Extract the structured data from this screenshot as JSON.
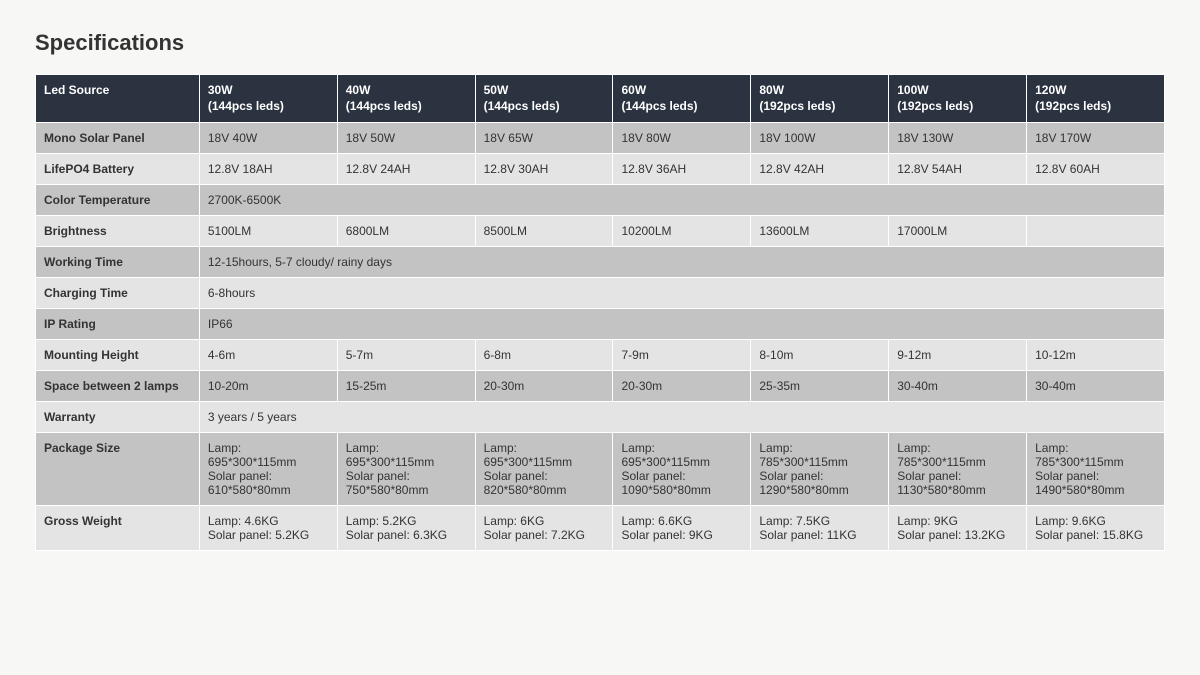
{
  "title": "Specifications",
  "colors": {
    "header_bg": "#2b3240",
    "header_fg": "#ffffff",
    "row_dark": "#c2c3c2",
    "row_light": "#e3e4e3",
    "text": "#333333",
    "border": "#ffffff",
    "page_bg": "#f7f7f5"
  },
  "table": {
    "header_label": "Led Source",
    "columns": [
      {
        "watt": "30W",
        "leds": "(144pcs leds)"
      },
      {
        "watt": "40W",
        "leds": "(144pcs leds)"
      },
      {
        "watt": "50W",
        "leds": "(144pcs leds)"
      },
      {
        "watt": "60W",
        "leds": "(144pcs leds)"
      },
      {
        "watt": "80W",
        "leds": "(192pcs leds)"
      },
      {
        "watt": "100W",
        "leds": "(192pcs leds)"
      },
      {
        "watt": "120W",
        "leds": "(192pcs leds)"
      }
    ],
    "rows": [
      {
        "label": "Mono Solar Panel",
        "shade": "dark",
        "cells": [
          "18V 40W",
          "18V 50W",
          "18V 65W",
          "18V 80W",
          "18V 100W",
          "18V 130W",
          "18V 170W"
        ]
      },
      {
        "label": "LifePO4 Battery",
        "shade": "light",
        "cells": [
          "12.8V 18AH",
          "12.8V 24AH",
          "12.8V 30AH",
          "12.8V 36AH",
          "12.8V 42AH",
          "12.8V 54AH",
          "12.8V 60AH"
        ]
      },
      {
        "label": "Color Temperature",
        "shade": "dark",
        "merged": "2700K-6500K"
      },
      {
        "label": "Brightness",
        "shade": "light",
        "cells": [
          "5100LM",
          "6800LM",
          "8500LM",
          "10200LM",
          "13600LM",
          "17000LM",
          ""
        ]
      },
      {
        "label": "Working Time",
        "shade": "dark",
        "merged": "12-15hours, 5-7 cloudy/ rainy days"
      },
      {
        "label": "Charging Time",
        "shade": "light",
        "merged": "6-8hours"
      },
      {
        "label": "IP Rating",
        "shade": "dark",
        "merged": "IP66"
      },
      {
        "label": "Mounting Height",
        "shade": "light",
        "cells": [
          "4-6m",
          "5-7m",
          "6-8m",
          "7-9m",
          "8-10m",
          "9-12m",
          "10-12m"
        ]
      },
      {
        "label": "Space between 2 lamps",
        "shade": "dark",
        "cells": [
          "10-20m",
          "15-25m",
          "20-30m",
          "20-30m",
          "25-35m",
          "30-40m",
          "30-40m"
        ]
      },
      {
        "label": "Warranty",
        "shade": "light",
        "merged": "3 years / 5 years"
      },
      {
        "label": "Package Size",
        "shade": "dark",
        "cells": [
          "Lamp: 695*300*115mm\nSolar panel: 610*580*80mm",
          "Lamp: 695*300*115mm\nSolar panel: 750*580*80mm",
          "Lamp: 695*300*115mm\nSolar panel: 820*580*80mm",
          "Lamp: 695*300*115mm\nSolar panel: 1090*580*80mm",
          "Lamp: 785*300*115mm\nSolar panel: 1290*580*80mm",
          "Lamp: 785*300*115mm\nSolar panel: 1130*580*80mm",
          "Lamp: 785*300*115mm\nSolar panel: 1490*580*80mm"
        ]
      },
      {
        "label": "Gross Weight",
        "shade": "light",
        "cells": [
          "Lamp: 4.6KG\nSolar panel: 5.2KG",
          "Lamp: 5.2KG\nSolar panel: 6.3KG",
          "Lamp: 6KG\nSolar panel: 7.2KG",
          "Lamp: 6.6KG\nSolar panel: 9KG",
          "Lamp: 7.5KG\nSolar panel: 11KG",
          "Lamp: 9KG\nSolar panel: 13.2KG",
          "Lamp: 9.6KG\nSolar panel: 15.8KG"
        ]
      }
    ]
  }
}
